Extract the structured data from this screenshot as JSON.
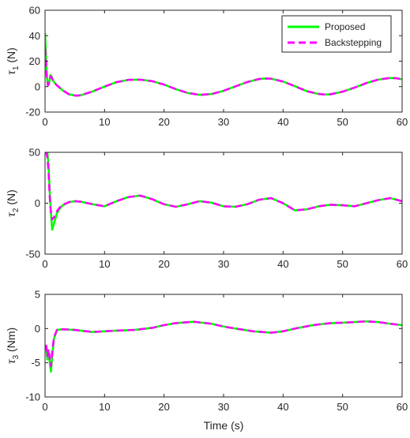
{
  "figure": {
    "xlabel": "Time (s)",
    "legend": {
      "location": "top-right of first subplot",
      "entries": [
        {
          "label": "Proposed",
          "color": "#00ff00",
          "style": "solid"
        },
        {
          "label": "Backstepping",
          "color": "#ff00ff",
          "style": "dashed"
        }
      ]
    },
    "colors": {
      "proposed": "#00ff00",
      "backstepping": "#ff00ff",
      "axis": "#262626",
      "background": "#ffffff"
    }
  },
  "chart_data": [
    {
      "type": "line",
      "ylabel_symbol": "τ",
      "ylabel_subscript": "1",
      "ylabel_unit": "(N)",
      "xlim": [
        0,
        60
      ],
      "ylim": [
        -20,
        60
      ],
      "xticks": [
        0,
        10,
        20,
        30,
        40,
        50,
        60
      ],
      "yticks": [
        -20,
        0,
        20,
        40,
        60
      ],
      "grid": false,
      "series": [
        {
          "name": "Proposed",
          "color": "#00ff00",
          "x": [
            0,
            0.15,
            0.3,
            0.5,
            0.7,
            0.9,
            1.1,
            1.3,
            1.6,
            2,
            2.5,
            3,
            4,
            5,
            5.5,
            6,
            8,
            10,
            12,
            14,
            16,
            18,
            20,
            22,
            24,
            26,
            28,
            30,
            32,
            34,
            36,
            37,
            38,
            40,
            42,
            44,
            46,
            47,
            48,
            50,
            52,
            54,
            56,
            58,
            59,
            60
          ],
          "values": [
            42,
            25,
            8,
            1,
            3,
            9,
            8,
            5,
            3,
            1,
            -1,
            -3,
            -6,
            -7,
            -7,
            -6.8,
            -3.8,
            0,
            3.5,
            5.3,
            5.5,
            4.3,
            1.6,
            -2,
            -5,
            -6.5,
            -5.8,
            -3.3,
            0.2,
            3.6,
            6,
            6.4,
            6.2,
            4,
            0.3,
            -3.6,
            -5.8,
            -6.2,
            -6,
            -4,
            -0.8,
            2.8,
            5.5,
            6.8,
            6.6,
            5.8
          ]
        },
        {
          "name": "Backstepping",
          "color": "#ff00ff",
          "x": [
            0,
            0.15,
            0.3,
            0.5,
            0.7,
            0.9,
            1.1,
            1.3,
            1.6,
            2,
            2.5,
            3,
            4,
            5,
            5.5,
            6,
            8,
            10,
            12,
            14,
            16,
            18,
            20,
            22,
            24,
            26,
            28,
            30,
            32,
            34,
            36,
            37,
            38,
            40,
            42,
            44,
            46,
            47,
            48,
            50,
            52,
            54,
            56,
            58,
            59,
            60
          ],
          "values": [
            30,
            20,
            7,
            1,
            3,
            8,
            7.5,
            5,
            3,
            1,
            -1,
            -3,
            -6,
            -7,
            -7,
            -6.8,
            -3.8,
            0,
            3.5,
            5.3,
            5.5,
            4.3,
            1.6,
            -2,
            -5,
            -6.5,
            -5.8,
            -3.3,
            0.2,
            3.6,
            6,
            6.4,
            6.2,
            4,
            0.3,
            -3.6,
            -5.8,
            -6.2,
            -6,
            -4,
            -0.8,
            2.8,
            5.5,
            6.8,
            6.6,
            5.8
          ]
        }
      ]
    },
    {
      "type": "line",
      "ylabel_symbol": "τ",
      "ylabel_subscript": "2",
      "ylabel_unit": "(N)",
      "xlim": [
        0,
        60
      ],
      "ylim": [
        -50,
        50
      ],
      "xticks": [
        0,
        10,
        20,
        30,
        40,
        50,
        60
      ],
      "yticks": [
        -50,
        0,
        50
      ],
      "grid": false,
      "series": [
        {
          "name": "Proposed",
          "color": "#00ff00",
          "x": [
            0,
            0.2,
            0.4,
            0.6,
            0.8,
            1.0,
            1.2,
            1.5,
            2,
            2.5,
            3,
            4,
            5,
            6,
            8,
            10,
            12,
            14,
            16,
            18,
            20,
            22,
            24,
            26,
            28,
            30,
            32,
            34,
            36,
            38,
            40,
            42,
            44,
            46,
            48,
            50,
            52,
            54,
            56,
            58,
            60
          ],
          "values": [
            50,
            50,
            50,
            35,
            10,
            -10,
            -26,
            -20,
            -10,
            -5,
            -2,
            1,
            2,
            1.5,
            -1,
            -3,
            2,
            6,
            7.5,
            4,
            -1,
            -3.5,
            -1,
            2,
            0.5,
            -3,
            -3.5,
            -1,
            3.5,
            5,
            0,
            -7,
            -6,
            -3,
            -1.5,
            -2,
            -3,
            0,
            3,
            5,
            2
          ]
        },
        {
          "name": "Backstepping",
          "color": "#ff00ff",
          "x": [
            0,
            0.2,
            0.4,
            0.6,
            0.8,
            1.0,
            1.2,
            1.5,
            2,
            2.5,
            3,
            4,
            5,
            6,
            8,
            10,
            12,
            14,
            16,
            18,
            20,
            22,
            24,
            26,
            28,
            30,
            32,
            34,
            36,
            38,
            40,
            42,
            44,
            46,
            48,
            50,
            52,
            54,
            56,
            58,
            60
          ],
          "values": [
            50,
            50,
            45,
            30,
            5,
            -10,
            -16,
            -14,
            -8,
            -4,
            -1.5,
            1,
            2,
            1.5,
            -1,
            -3,
            2,
            6,
            7.5,
            4,
            -1,
            -3.5,
            -1,
            2,
            0.5,
            -3,
            -3.5,
            -1,
            3.5,
            5,
            0,
            -7,
            -6,
            -3,
            -1.5,
            -2,
            -3,
            0,
            3,
            5,
            2
          ]
        }
      ]
    },
    {
      "type": "line",
      "ylabel_symbol": "τ",
      "ylabel_subscript": "3",
      "ylabel_unit": "(Nm)",
      "xlim": [
        0,
        60
      ],
      "ylim": [
        -10,
        5
      ],
      "xticks": [
        0,
        10,
        20,
        30,
        40,
        50,
        60
      ],
      "yticks": [
        -10,
        -5,
        0,
        5
      ],
      "grid": false,
      "series": [
        {
          "name": "Proposed",
          "color": "#00ff00",
          "x": [
            0,
            0.2,
            0.4,
            0.6,
            0.8,
            1.0,
            1.2,
            1.5,
            2,
            3,
            5,
            8,
            10,
            12,
            15,
            18,
            20,
            22,
            25,
            28,
            30,
            32,
            35,
            38,
            40,
            42,
            45,
            48,
            50,
            52,
            54,
            56,
            58,
            60
          ],
          "values": [
            -3,
            -2.8,
            -4.5,
            -3.5,
            -5,
            -6.3,
            -4,
            -1.5,
            -0.2,
            -0.1,
            -0.2,
            -0.5,
            -0.4,
            -0.3,
            -0.2,
            0.1,
            0.5,
            0.8,
            1,
            0.7,
            0.3,
            0,
            -0.4,
            -0.6,
            -0.4,
            0,
            0.5,
            0.8,
            0.85,
            0.95,
            1.05,
            0.95,
            0.7,
            0.5
          ]
        },
        {
          "name": "Backstepping",
          "color": "#ff00ff",
          "x": [
            0,
            0.2,
            0.4,
            0.6,
            0.8,
            1.0,
            1.2,
            1.5,
            2,
            3,
            5,
            8,
            10,
            12,
            15,
            18,
            20,
            22,
            25,
            28,
            30,
            32,
            35,
            38,
            40,
            42,
            45,
            48,
            50,
            52,
            54,
            56,
            58,
            60
          ],
          "values": [
            -2.5,
            -2.5,
            -4,
            -3,
            -4.5,
            -5.5,
            -3.5,
            -1.3,
            -0.2,
            -0.1,
            -0.2,
            -0.5,
            -0.4,
            -0.3,
            -0.2,
            0.1,
            0.5,
            0.8,
            1,
            0.7,
            0.3,
            0,
            -0.4,
            -0.6,
            -0.4,
            0,
            0.5,
            0.8,
            0.85,
            0.95,
            1.05,
            0.95,
            0.7,
            0.5
          ]
        }
      ]
    }
  ]
}
